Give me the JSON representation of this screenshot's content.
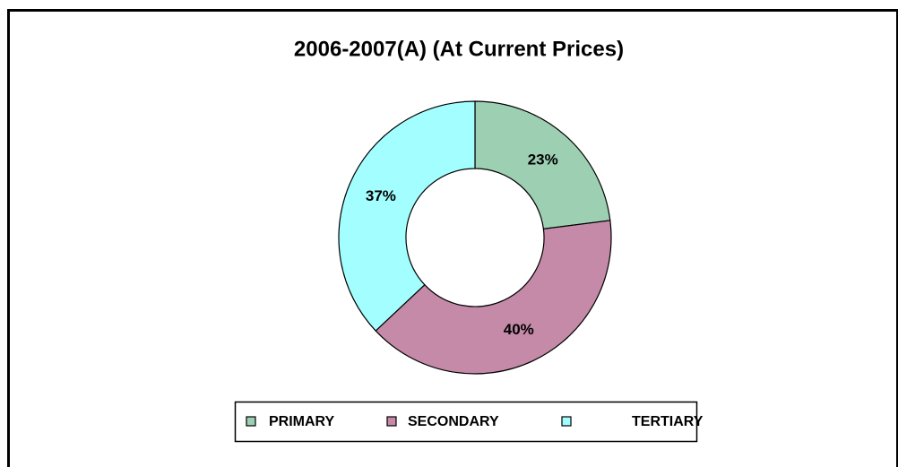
{
  "chart_data": {
    "type": "donut",
    "title": "2006-2007(A)  (At Current Prices)",
    "categories": [
      "PRIMARY",
      "SECONDARY",
      "TERTIARY"
    ],
    "values": [
      23,
      40,
      37
    ],
    "value_labels": [
      "23%",
      "40%",
      "37%"
    ],
    "colors": [
      "#9dcfb3",
      "#c48aa8",
      "#a3ffff"
    ],
    "legend": "bottom"
  }
}
